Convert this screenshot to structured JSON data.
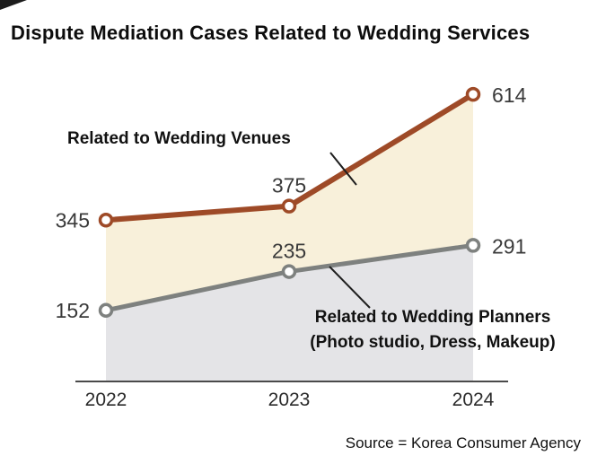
{
  "title": "Dispute Mediation Cases Related to Wedding Services",
  "source": "Source = Korea Consumer Agency",
  "chart_data": {
    "type": "line",
    "subtype": "stacked-look area + line with markers",
    "categories": [
      "2022",
      "2023",
      "2024"
    ],
    "series": [
      {
        "name": "Related to Wedding Venues",
        "values": [
          345,
          375,
          614
        ],
        "line_color": "#9e4a27",
        "fill_color": "#f8f0da",
        "marker": "open-circle",
        "label_positions": [
          "left",
          "above",
          "right"
        ]
      },
      {
        "name": "Related to Wedding Planners (Photo studio, Dress, Makeup)",
        "values": [
          152,
          235,
          291
        ],
        "line_color": "#7e817f",
        "fill_color": "#e4e4e7",
        "marker": "open-circle",
        "label_positions": [
          "left",
          "above",
          "right"
        ]
      }
    ],
    "ylim": [
      0,
      700
    ],
    "baseline": 0,
    "grid": false,
    "legend_position": "inline-annotations",
    "axis_color": "#4a4a4a",
    "value_label_color": "#3a3a3a",
    "tick_label_color": "#2b2b2b",
    "annotations": [
      {
        "text": "Related to Wedding Venues"
      },
      {
        "text": "Related to Wedding Planners\n(Photo studio, Dress, Makeup)"
      }
    ]
  }
}
